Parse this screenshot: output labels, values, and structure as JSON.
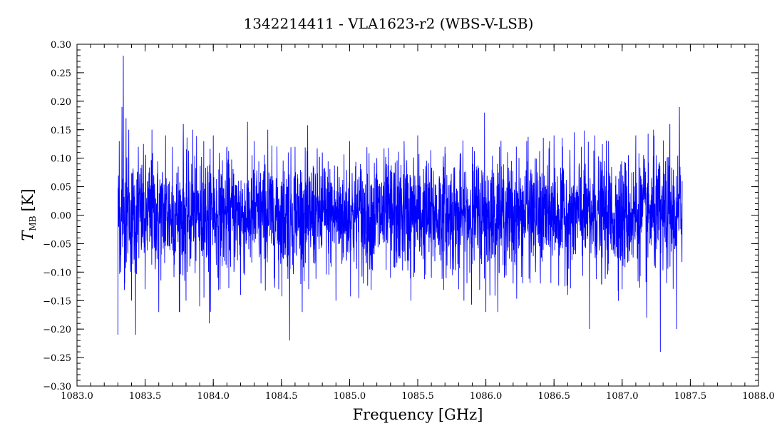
{
  "chart_data": {
    "type": "line",
    "title": "1342214411 - VLA1623-r2 (WBS-V-LSB)",
    "xlabel": "Frequency [GHz]",
    "ylabel": {
      "main": "T",
      "sub": "MB",
      "unit": "[K]"
    },
    "xlim": [
      1083.0,
      1088.0
    ],
    "ylim": [
      -0.3,
      0.3
    ],
    "xticks": [
      1083.0,
      1083.5,
      1084.0,
      1084.5,
      1085.0,
      1085.5,
      1086.0,
      1086.5,
      1087.0,
      1087.5,
      1088.0
    ],
    "xtick_labels": [
      "1083.0",
      "1083.5",
      "1084.0",
      "1084.5",
      "1085.0",
      "1085.5",
      "1086.0",
      "1086.5",
      "1087.0",
      "1087.5",
      "1088.0"
    ],
    "yticks": [
      -0.3,
      -0.25,
      -0.2,
      -0.15,
      -0.1,
      -0.05,
      0.0,
      0.05,
      0.1,
      0.15,
      0.2,
      0.25,
      0.3
    ],
    "ytick_labels": [
      "−0.30",
      "−0.25",
      "−0.20",
      "−0.15",
      "−0.10",
      "−0.05",
      "0.00",
      "0.05",
      "0.10",
      "0.15",
      "0.20",
      "0.25",
      "0.30"
    ],
    "grid": false,
    "legend": "none",
    "series": [
      {
        "color": "#0000ff",
        "x_range": [
          1083.3,
          1087.44
        ],
        "noise_rms": 0.05,
        "x": [
          1083.3,
          1083.31,
          1083.32,
          1083.33,
          1083.34,
          1083.35,
          1083.36,
          1083.38,
          1083.4,
          1083.43,
          1083.45,
          1083.5,
          1083.55,
          1083.6,
          1083.65,
          1083.7,
          1083.75,
          1083.78,
          1083.8,
          1083.85,
          1083.9,
          1083.93,
          1083.97,
          1084.0,
          1084.05,
          1084.1,
          1084.2,
          1084.3,
          1084.35,
          1084.4,
          1084.48,
          1084.55,
          1084.56,
          1084.6,
          1084.7,
          1084.8,
          1084.9,
          1085.0,
          1085.1,
          1085.2,
          1085.3,
          1085.4,
          1085.45,
          1085.5,
          1085.6,
          1085.7,
          1085.8,
          1085.9,
          1085.99,
          1086.0,
          1086.1,
          1086.2,
          1086.3,
          1086.4,
          1086.5,
          1086.6,
          1086.7,
          1086.76,
          1086.8,
          1086.85,
          1086.9,
          1087.0,
          1087.1,
          1087.18,
          1087.23,
          1087.28,
          1087.35,
          1087.4,
          1087.42,
          1087.44
        ],
        "y": [
          -0.21,
          0.13,
          -0.1,
          0.19,
          0.28,
          -0.12,
          0.17,
          0.15,
          -0.15,
          -0.21,
          0.12,
          -0.13,
          0.15,
          -0.17,
          0.14,
          0.12,
          -0.17,
          0.16,
          -0.15,
          0.15,
          -0.16,
          0.13,
          -0.19,
          0.14,
          -0.13,
          0.12,
          -0.14,
          0.13,
          -0.12,
          0.15,
          -0.13,
          0.11,
          -0.22,
          0.12,
          -0.13,
          0.11,
          -0.15,
          0.13,
          -0.12,
          0.1,
          -0.11,
          0.13,
          -0.15,
          0.14,
          -0.11,
          0.12,
          -0.13,
          0.12,
          0.18,
          -0.17,
          0.12,
          -0.12,
          0.13,
          -0.12,
          0.14,
          -0.14,
          0.12,
          -0.2,
          0.14,
          -0.12,
          0.13,
          -0.13,
          0.14,
          -0.18,
          0.15,
          -0.24,
          0.16,
          -0.2,
          0.19,
          0.06
        ]
      }
    ]
  }
}
